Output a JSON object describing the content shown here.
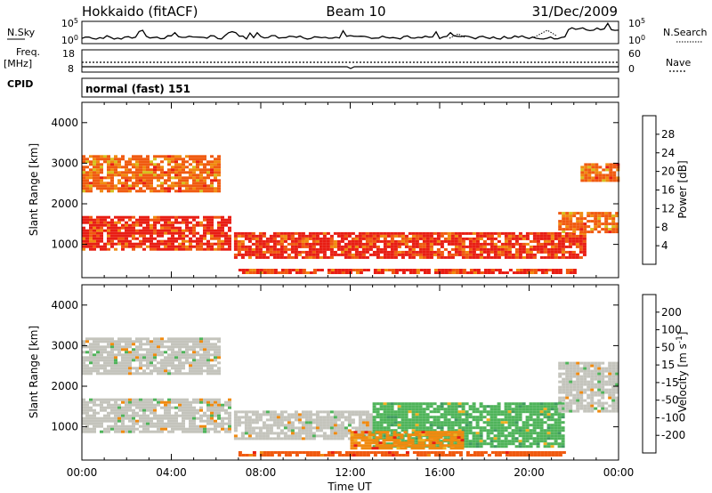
{
  "header": {
    "title": "Hokkaido (fitACF)",
    "beam": "Beam 10",
    "date": "31/Dec/2009"
  },
  "nsky_panel": {
    "label": "N.Sky",
    "left_top": "10^5",
    "left_bottom": "10^0",
    "right_top": "10^5",
    "right_bottom": "10^0",
    "right_label": "N.Search"
  },
  "freq_panel": {
    "label_line1": "Freq.",
    "label_line2": "[MHz]",
    "left_top": "18",
    "left_bottom": "8",
    "right_top": "60",
    "right_bottom": "0",
    "right_label": "Nave"
  },
  "cpid": {
    "label": "CPID",
    "value": "normal (fast) 151"
  },
  "colors": {
    "power_scale": [
      "#2a3fe6",
      "#2d57a8",
      "#3f7d5f",
      "#4fb45a",
      "#d6c01e",
      "#f08a10",
      "#f05a10",
      "#e81e14"
    ],
    "velocity_scale": [
      "#e81e14",
      "#f05a10",
      "#f08a10",
      "#f0b020",
      "#c4c4bc",
      "#4fb45a",
      "#3f9a5f",
      "#2d57a8",
      "#2a3fe6"
    ]
  },
  "chart_data": [
    {
      "type": "heatmap",
      "name": "power",
      "ylabel": "Slant Range [km]",
      "xlabel": "",
      "yticks": [
        "1000",
        "2000",
        "3000",
        "4000"
      ],
      "xticks": [],
      "ylim": [
        180,
        4500
      ],
      "xlim_hours": [
        0,
        24
      ],
      "colorbar": {
        "title": "Power [dB]",
        "ticks": [
          "4",
          "8",
          "12",
          "16",
          "20",
          "24",
          "28"
        ],
        "range": [
          0,
          32
        ]
      },
      "features": [
        {
          "hours": [
            0,
            6.6
          ],
          "range_km": [
            900,
            1700
          ],
          "level": "28"
        },
        {
          "hours": [
            0,
            6.2
          ],
          "range_km": [
            2300,
            3200
          ],
          "level": "24"
        },
        {
          "hours": [
            6.8,
            22.5
          ],
          "range_km": [
            700,
            1300
          ],
          "level": "28"
        },
        {
          "hours": [
            7,
            22
          ],
          "range_km": [
            300,
            400
          ],
          "level": "28"
        },
        {
          "hours": [
            21.3,
            24
          ],
          "range_km": [
            1300,
            1800
          ],
          "level": "24"
        },
        {
          "hours": [
            22.3,
            24
          ],
          "range_km": [
            2600,
            3000
          ],
          "level": "24"
        }
      ]
    },
    {
      "type": "heatmap",
      "name": "velocity",
      "ylabel": "Slant Range [km]",
      "xlabel": "Time UT",
      "yticks": [
        "1000",
        "2000",
        "3000",
        "4000"
      ],
      "xticks": [
        "00:00",
        "04:00",
        "08:00",
        "12:00",
        "16:00",
        "20:00",
        "00:00"
      ],
      "ylim": [
        180,
        4500
      ],
      "xlim_hours": [
        0,
        24
      ],
      "colorbar": {
        "title": "Velocity [m s^-1]",
        "ticks": [
          "-200",
          "-100",
          "-50",
          "-15",
          "15",
          "50",
          "100",
          "200"
        ]
      },
      "features": [
        {
          "hours": [
            0,
            6.6
          ],
          "range_km": [
            900,
            1700
          ],
          "level": "15"
        },
        {
          "hours": [
            0,
            6.2
          ],
          "range_km": [
            2300,
            3200
          ],
          "level": "15"
        },
        {
          "hours": [
            6.8,
            13
          ],
          "range_km": [
            700,
            1400
          ],
          "level": "15"
        },
        {
          "hours": [
            13,
            21.5
          ],
          "range_km": [
            500,
            1600
          ],
          "level": "50"
        },
        {
          "hours": [
            12,
            17
          ],
          "range_km": [
            500,
            900
          ],
          "level": "-50"
        },
        {
          "hours": [
            7,
            21.5
          ],
          "range_km": [
            300,
            400
          ],
          "level": "-100"
        },
        {
          "hours": [
            21.3,
            24
          ],
          "range_km": [
            1400,
            2600
          ],
          "level": "15"
        }
      ]
    }
  ]
}
